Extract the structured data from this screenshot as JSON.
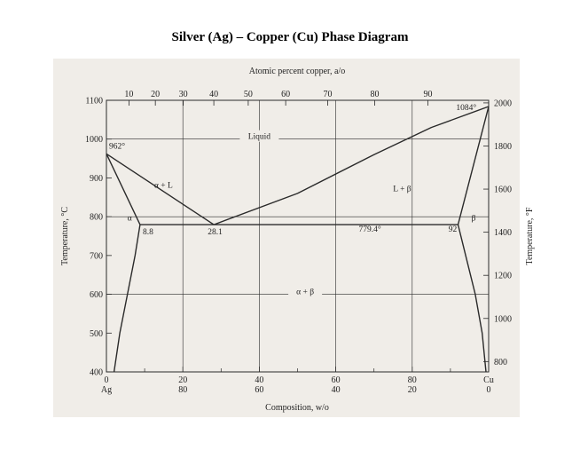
{
  "title": "Silver (Ag) – Copper (Cu) Phase Diagram",
  "colors": {
    "background": "#ffffff",
    "paper": "#f0ede8",
    "ink": "#2a2a2a"
  },
  "chart_data": {
    "type": "line",
    "title": "Silver (Ag) – Copper (Cu) Phase Diagram",
    "xlabel": "Composition, w/o",
    "x2label": "Atomic percent copper, a/o",
    "ylabel": "Temperature, °C",
    "y2label": "Temperature, °F",
    "xlim": [
      0,
      100
    ],
    "ylim": [
      400,
      1100
    ],
    "y2lim": [
      752,
      2012
    ],
    "grid": true,
    "x_ticks": [
      {
        "v": 0,
        "top": "0",
        "bottom": "Ag"
      },
      {
        "v": 20,
        "top": "20",
        "bottom": "80"
      },
      {
        "v": 40,
        "top": "40",
        "bottom": "60"
      },
      {
        "v": 60,
        "top": "60",
        "bottom": "40"
      },
      {
        "v": 80,
        "top": "80",
        "bottom": "20"
      },
      {
        "v": 100,
        "top": "Cu",
        "bottom": "0"
      }
    ],
    "x_minor_ticks": [
      10,
      30,
      50,
      70,
      90
    ],
    "x2_ticks": [
      {
        "v": 5.9,
        "label": "10"
      },
      {
        "v": 12.8,
        "label": "20"
      },
      {
        "v": 20.1,
        "label": "30"
      },
      {
        "v": 28.1,
        "label": "40"
      },
      {
        "v": 37.1,
        "label": "50"
      },
      {
        "v": 46.9,
        "label": "60"
      },
      {
        "v": 57.9,
        "label": "70"
      },
      {
        "v": 70.2,
        "label": "80"
      },
      {
        "v": 84.1,
        "label": "90"
      }
    ],
    "y_ticks": [
      400,
      500,
      600,
      700,
      800,
      900,
      1000,
      1100
    ],
    "y2_ticks": [
      800,
      1000,
      1200,
      1400,
      1600,
      1800,
      2000
    ],
    "gridlines_x": [
      20,
      40,
      60,
      80
    ],
    "gridlines_y": [
      600,
      800,
      1000
    ],
    "curves": [
      {
        "name": "liquidus-ag",
        "points": [
          [
            0,
            962
          ],
          [
            28.1,
            779.4
          ]
        ]
      },
      {
        "name": "liquidus-cu",
        "points": [
          [
            28.1,
            779.4
          ],
          [
            50,
            860
          ],
          [
            70,
            960
          ],
          [
            85,
            1030
          ],
          [
            100,
            1084
          ]
        ]
      },
      {
        "name": "solidus-alpha",
        "points": [
          [
            0,
            962
          ],
          [
            8.8,
            779.4
          ]
        ]
      },
      {
        "name": "solvus-alpha",
        "points": [
          [
            8.8,
            779.4
          ],
          [
            7.5,
            700
          ],
          [
            5.5,
            600
          ],
          [
            3.5,
            500
          ],
          [
            2.0,
            400
          ]
        ]
      },
      {
        "name": "solidus-beta",
        "points": [
          [
            100,
            1084
          ],
          [
            92,
            779.4
          ]
        ]
      },
      {
        "name": "solvus-beta",
        "points": [
          [
            92,
            779.4
          ],
          [
            94,
            700
          ],
          [
            96.5,
            600
          ],
          [
            98.3,
            500
          ],
          [
            99.3,
            400
          ]
        ]
      },
      {
        "name": "eutectic-line",
        "points": [
          [
            8.8,
            779.4
          ],
          [
            92,
            779.4
          ]
        ]
      }
    ],
    "annotations": [
      {
        "text": "962°",
        "x": 0.7,
        "y": 975
      },
      {
        "text": "1084°",
        "x": 91.5,
        "y": 1075
      },
      {
        "text": "Liquid",
        "x": 40,
        "y": 1000
      },
      {
        "text": "α + L",
        "x": 12.5,
        "y": 875
      },
      {
        "text": "L + β",
        "x": 75,
        "y": 865
      },
      {
        "text": "α",
        "x": 5.5,
        "y": 790
      },
      {
        "text": "β",
        "x": 95.5,
        "y": 790
      },
      {
        "text": "8.8",
        "x": 9.5,
        "y": 755
      },
      {
        "text": "28.1",
        "x": 26.5,
        "y": 755
      },
      {
        "text": "779.4°",
        "x": 66,
        "y": 762
      },
      {
        "text": "92",
        "x": 89.5,
        "y": 762
      },
      {
        "text": "α + β",
        "x": 52,
        "y": 600
      }
    ]
  }
}
